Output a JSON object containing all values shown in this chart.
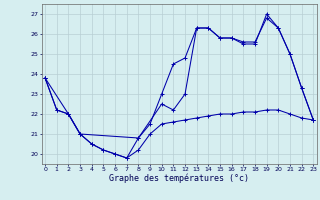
{
  "xlabel": "Graphe des températures (°c)",
  "bg_color": "#d6eef0",
  "grid_color": "#b8cfd4",
  "line_color": "#0000aa",
  "x_ticks": [
    0,
    1,
    2,
    3,
    4,
    5,
    6,
    7,
    8,
    9,
    10,
    11,
    12,
    13,
    14,
    15,
    16,
    17,
    18,
    19,
    20,
    21,
    22,
    23
  ],
  "xlim": [
    -0.3,
    23.3
  ],
  "ylim": [
    19.5,
    27.5
  ],
  "y_ticks": [
    20,
    21,
    22,
    23,
    24,
    25,
    26,
    27
  ],
  "series1_x": [
    0,
    1,
    2,
    3,
    4,
    5,
    6,
    7,
    8,
    9,
    10,
    11,
    12,
    13,
    14,
    15,
    16,
    17,
    18,
    19,
    20,
    21,
    22,
    23
  ],
  "series1_y": [
    23.8,
    22.2,
    22.0,
    21.0,
    20.5,
    20.2,
    20.0,
    19.8,
    20.2,
    21.0,
    21.5,
    21.6,
    21.7,
    21.8,
    21.9,
    22.0,
    22.0,
    22.1,
    22.1,
    22.2,
    22.2,
    22.0,
    21.8,
    21.7
  ],
  "series2_x": [
    0,
    1,
    2,
    3,
    4,
    5,
    6,
    7,
    8,
    9,
    10,
    11,
    12,
    13,
    14,
    15,
    16,
    17,
    18,
    19,
    20,
    21,
    22,
    23
  ],
  "series2_y": [
    23.8,
    22.2,
    22.0,
    21.0,
    20.5,
    20.2,
    20.0,
    19.8,
    20.8,
    21.5,
    23.0,
    24.5,
    24.8,
    26.3,
    26.3,
    25.8,
    25.8,
    25.6,
    25.6,
    26.8,
    26.3,
    25.0,
    23.3,
    21.7
  ],
  "series3_x": [
    0,
    2,
    3,
    8,
    10,
    11,
    12,
    13,
    14,
    15,
    16,
    17,
    18,
    19,
    20,
    21,
    22,
    23
  ],
  "series3_y": [
    23.8,
    22.0,
    21.0,
    20.8,
    22.5,
    22.2,
    23.0,
    26.3,
    26.3,
    25.8,
    25.8,
    25.5,
    25.5,
    27.0,
    26.3,
    25.0,
    23.3,
    21.7
  ]
}
